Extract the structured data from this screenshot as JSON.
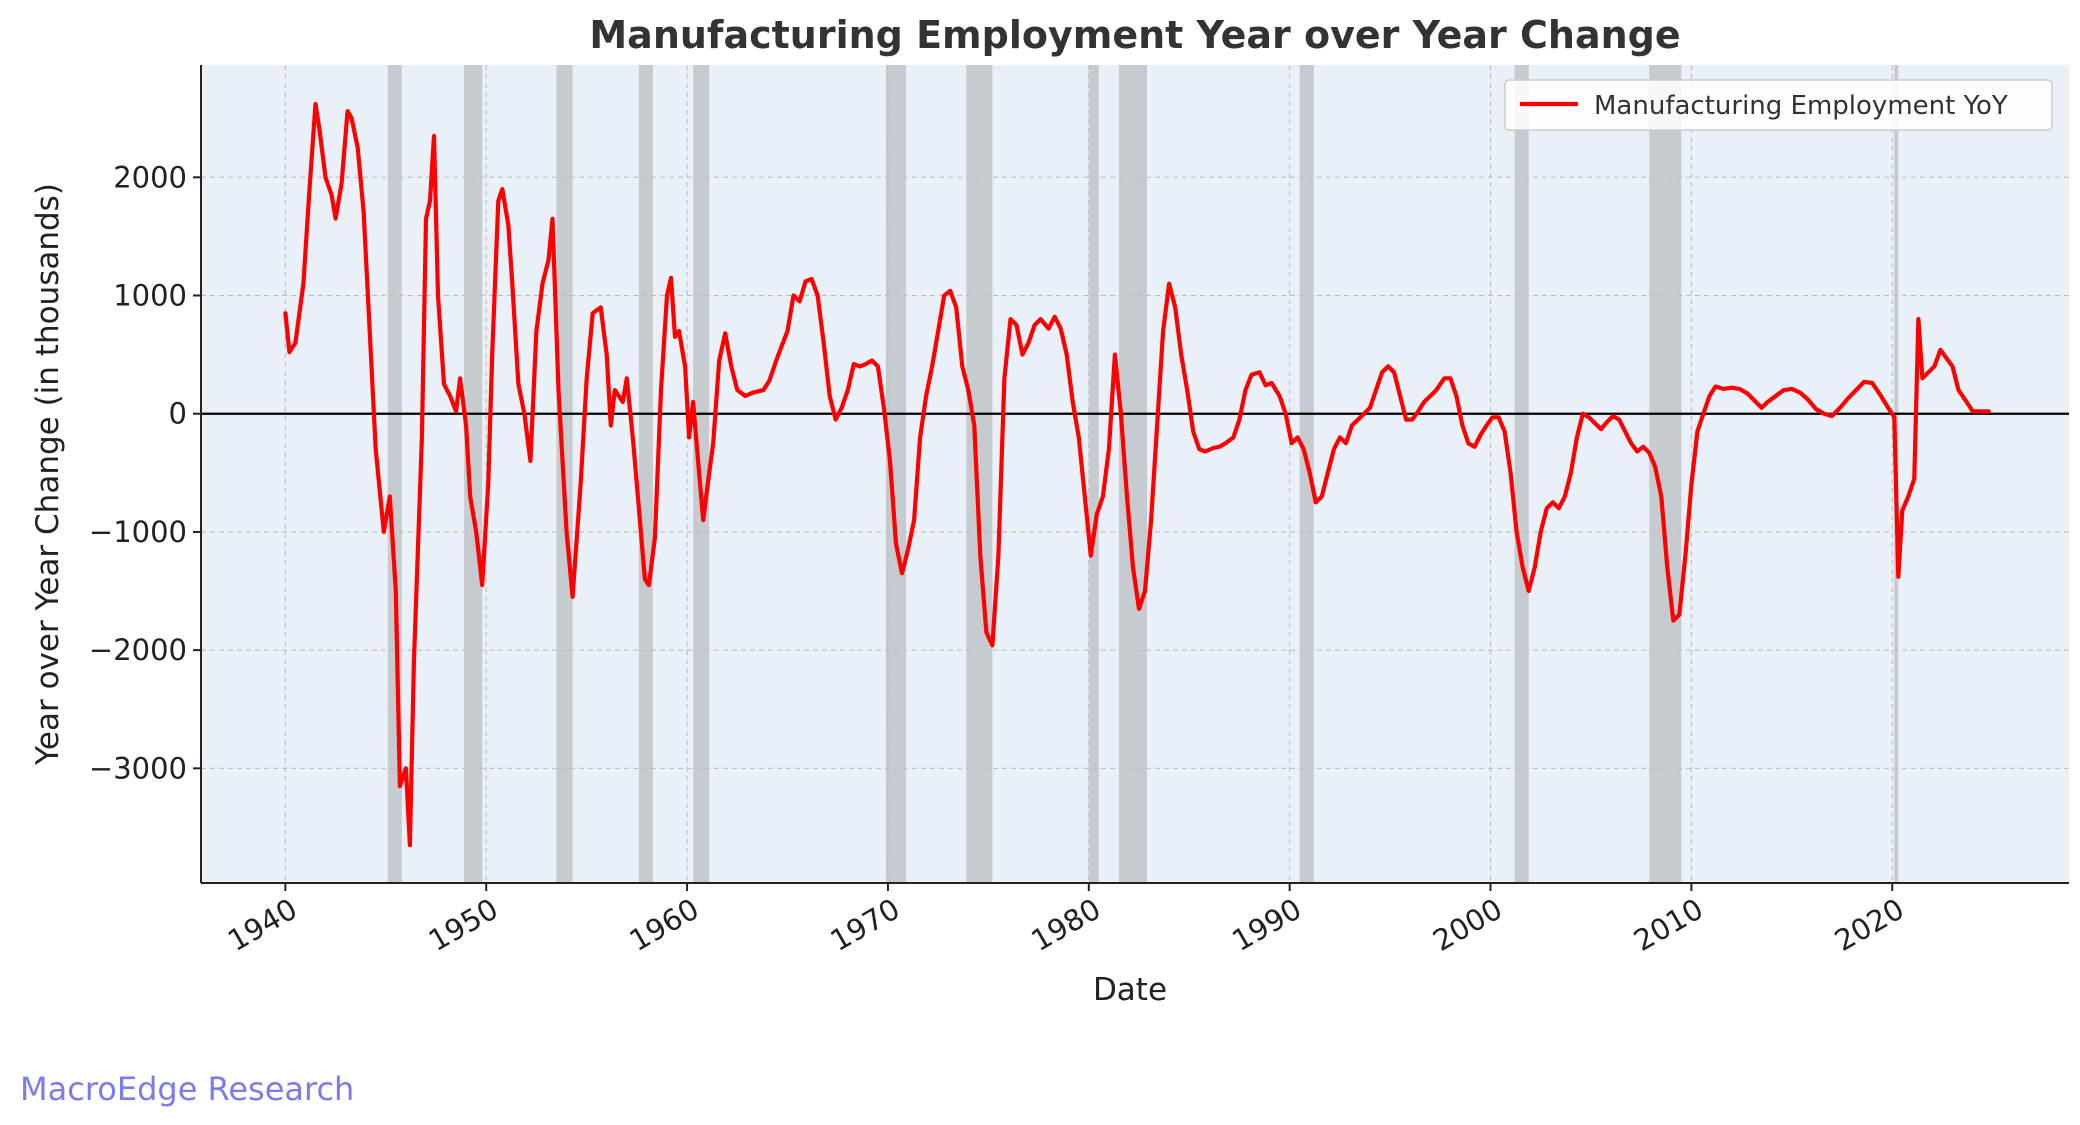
{
  "chart_data": {
    "type": "line",
    "title": "Manufacturing Employment Year over Year Change",
    "xlabel": "Date",
    "ylabel": "Year over Year Change (in thousands)",
    "xlim": [
      1935.8,
      2028.8
    ],
    "ylim": [
      -3970,
      2950
    ],
    "xticks": [
      1940,
      1950,
      1960,
      1970,
      1980,
      1990,
      2000,
      2010,
      2020
    ],
    "yticks": [
      -3000,
      -2000,
      -1000,
      0,
      1000,
      2000
    ],
    "ytick_labels": [
      "−3000",
      "−2000",
      "−1000",
      "0",
      "1000",
      "2000"
    ],
    "grid": true,
    "zero_line": true,
    "legend_position": "top-right",
    "colors": {
      "line": "#ff0000",
      "plot_background": "#eaf0f7",
      "recession_band": "#b9bcc0",
      "grid": "#bbbbbb",
      "zero_line": "#000000"
    },
    "recessions": [
      [
        1945.1,
        1945.8
      ],
      [
        1948.9,
        1949.8
      ],
      [
        1953.5,
        1954.3
      ],
      [
        1957.6,
        1958.3
      ],
      [
        1960.3,
        1961.1
      ],
      [
        1969.9,
        1970.9
      ],
      [
        1973.9,
        1975.2
      ],
      [
        1980.0,
        1980.5
      ],
      [
        1981.5,
        1982.9
      ],
      [
        1990.5,
        1991.2
      ],
      [
        2001.2,
        2001.9
      ],
      [
        2007.9,
        2009.5
      ],
      [
        2020.1,
        2020.3
      ]
    ],
    "series": [
      {
        "name": "Manufacturing Employment YoY",
        "color": "#ff0000",
        "points": [
          [
            1940.0,
            850
          ],
          [
            1940.2,
            520
          ],
          [
            1940.5,
            600
          ],
          [
            1940.9,
            1100
          ],
          [
            1941.2,
            1900
          ],
          [
            1941.5,
            2620
          ],
          [
            1941.7,
            2400
          ],
          [
            1942.0,
            2000
          ],
          [
            1942.3,
            1850
          ],
          [
            1942.5,
            1650
          ],
          [
            1942.8,
            1950
          ],
          [
            1943.1,
            2560
          ],
          [
            1943.3,
            2500
          ],
          [
            1943.6,
            2250
          ],
          [
            1943.9,
            1700
          ],
          [
            1944.2,
            700
          ],
          [
            1944.5,
            -300
          ],
          [
            1944.9,
            -1000
          ],
          [
            1945.2,
            -700
          ],
          [
            1945.5,
            -1500
          ],
          [
            1945.7,
            -3150
          ],
          [
            1945.9,
            -3050
          ],
          [
            1946.0,
            -3000
          ],
          [
            1946.2,
            -3650
          ],
          [
            1946.4,
            -2100
          ],
          [
            1946.8,
            -200
          ],
          [
            1947.0,
            1650
          ],
          [
            1947.2,
            1800
          ],
          [
            1947.4,
            2350
          ],
          [
            1947.6,
            1000
          ],
          [
            1947.9,
            250
          ],
          [
            1948.2,
            150
          ],
          [
            1948.5,
            20
          ],
          [
            1948.7,
            300
          ],
          [
            1949.0,
            -100
          ],
          [
            1949.2,
            -700
          ],
          [
            1949.5,
            -1000
          ],
          [
            1949.8,
            -1450
          ],
          [
            1950.1,
            -600
          ],
          [
            1950.3,
            500
          ],
          [
            1950.6,
            1800
          ],
          [
            1950.8,
            1900
          ],
          [
            1951.1,
            1600
          ],
          [
            1951.3,
            1100
          ],
          [
            1951.6,
            250
          ],
          [
            1951.9,
            0
          ],
          [
            1952.2,
            -400
          ],
          [
            1952.5,
            700
          ],
          [
            1952.8,
            1100
          ],
          [
            1953.1,
            1300
          ],
          [
            1953.3,
            1650
          ],
          [
            1953.6,
            200
          ],
          [
            1954.0,
            -1000
          ],
          [
            1954.3,
            -1550
          ],
          [
            1954.7,
            -600
          ],
          [
            1955.0,
            300
          ],
          [
            1955.3,
            850
          ],
          [
            1955.7,
            900
          ],
          [
            1956.0,
            500
          ],
          [
            1956.2,
            -100
          ],
          [
            1956.4,
            200
          ],
          [
            1956.8,
            100
          ],
          [
            1957.0,
            300
          ],
          [
            1957.3,
            -200
          ],
          [
            1957.6,
            -800
          ],
          [
            1957.9,
            -1400
          ],
          [
            1958.1,
            -1450
          ],
          [
            1958.4,
            -1050
          ],
          [
            1958.7,
            200
          ],
          [
            1959.0,
            1000
          ],
          [
            1959.2,
            1150
          ],
          [
            1959.4,
            650
          ],
          [
            1959.6,
            700
          ],
          [
            1959.9,
            400
          ],
          [
            1960.1,
            -200
          ],
          [
            1960.3,
            100
          ],
          [
            1960.6,
            -500
          ],
          [
            1960.8,
            -900
          ],
          [
            1961.1,
            -500
          ],
          [
            1961.3,
            -250
          ],
          [
            1961.6,
            450
          ],
          [
            1961.9,
            680
          ],
          [
            1962.2,
            400
          ],
          [
            1962.5,
            200
          ],
          [
            1962.9,
            150
          ],
          [
            1963.3,
            180
          ],
          [
            1963.8,
            200
          ],
          [
            1964.1,
            280
          ],
          [
            1964.5,
            480
          ],
          [
            1965.0,
            700
          ],
          [
            1965.3,
            1000
          ],
          [
            1965.6,
            950
          ],
          [
            1965.9,
            1120
          ],
          [
            1966.2,
            1140
          ],
          [
            1966.5,
            1000
          ],
          [
            1966.8,
            600
          ],
          [
            1967.1,
            150
          ],
          [
            1967.4,
            -50
          ],
          [
            1967.7,
            50
          ],
          [
            1968.0,
            200
          ],
          [
            1968.3,
            420
          ],
          [
            1968.6,
            400
          ],
          [
            1968.9,
            420
          ],
          [
            1969.2,
            450
          ],
          [
            1969.5,
            400
          ],
          [
            1969.8,
            50
          ],
          [
            1970.1,
            -400
          ],
          [
            1970.4,
            -1100
          ],
          [
            1970.7,
            -1350
          ],
          [
            1971.0,
            -1150
          ],
          [
            1971.3,
            -900
          ],
          [
            1971.6,
            -200
          ],
          [
            1971.9,
            150
          ],
          [
            1972.2,
            400
          ],
          [
            1972.5,
            700
          ],
          [
            1972.8,
            1000
          ],
          [
            1973.1,
            1040
          ],
          [
            1973.4,
            900
          ],
          [
            1973.7,
            400
          ],
          [
            1974.0,
            200
          ],
          [
            1974.3,
            -100
          ],
          [
            1974.6,
            -1200
          ],
          [
            1974.9,
            -1850
          ],
          [
            1975.2,
            -1960
          ],
          [
            1975.5,
            -1200
          ],
          [
            1975.8,
            300
          ],
          [
            1976.1,
            800
          ],
          [
            1976.4,
            750
          ],
          [
            1976.7,
            500
          ],
          [
            1977.0,
            600
          ],
          [
            1977.3,
            750
          ],
          [
            1977.6,
            800
          ],
          [
            1978.0,
            720
          ],
          [
            1978.3,
            820
          ],
          [
            1978.6,
            720
          ],
          [
            1978.9,
            500
          ],
          [
            1979.2,
            100
          ],
          [
            1979.5,
            -200
          ],
          [
            1979.8,
            -700
          ],
          [
            1980.1,
            -1200
          ],
          [
            1980.4,
            -850
          ],
          [
            1980.7,
            -700
          ],
          [
            1981.0,
            -300
          ],
          [
            1981.3,
            500
          ],
          [
            1981.6,
            0
          ],
          [
            1981.9,
            -700
          ],
          [
            1982.2,
            -1300
          ],
          [
            1982.5,
            -1650
          ],
          [
            1982.8,
            -1500
          ],
          [
            1983.1,
            -900
          ],
          [
            1983.4,
            -100
          ],
          [
            1983.7,
            700
          ],
          [
            1984.0,
            1100
          ],
          [
            1984.3,
            900
          ],
          [
            1984.6,
            500
          ],
          [
            1984.9,
            200
          ],
          [
            1985.2,
            -150
          ],
          [
            1985.5,
            -300
          ],
          [
            1985.8,
            -320
          ],
          [
            1986.2,
            -290
          ],
          [
            1986.5,
            -280
          ],
          [
            1986.8,
            -250
          ],
          [
            1987.2,
            -200
          ],
          [
            1987.5,
            -50
          ],
          [
            1987.8,
            200
          ],
          [
            1988.1,
            330
          ],
          [
            1988.5,
            350
          ],
          [
            1988.8,
            240
          ],
          [
            1989.1,
            260
          ],
          [
            1989.5,
            150
          ],
          [
            1989.8,
            0
          ],
          [
            1990.1,
            -250
          ],
          [
            1990.4,
            -200
          ],
          [
            1990.7,
            -300
          ],
          [
            1991.0,
            -500
          ],
          [
            1991.3,
            -750
          ],
          [
            1991.6,
            -700
          ],
          [
            1991.9,
            -500
          ],
          [
            1992.2,
            -300
          ],
          [
            1992.5,
            -200
          ],
          [
            1992.8,
            -250
          ],
          [
            1993.1,
            -100
          ],
          [
            1993.4,
            -50
          ],
          [
            1993.7,
            0
          ],
          [
            1994.0,
            50
          ],
          [
            1994.3,
            200
          ],
          [
            1994.6,
            350
          ],
          [
            1994.9,
            400
          ],
          [
            1995.2,
            350
          ],
          [
            1995.5,
            150
          ],
          [
            1995.8,
            -50
          ],
          [
            1996.1,
            -50
          ],
          [
            1996.4,
            20
          ],
          [
            1996.7,
            100
          ],
          [
            1997.0,
            150
          ],
          [
            1997.3,
            200
          ],
          [
            1997.7,
            300
          ],
          [
            1998.0,
            300
          ],
          [
            1998.3,
            150
          ],
          [
            1998.6,
            -100
          ],
          [
            1998.9,
            -250
          ],
          [
            1999.2,
            -280
          ],
          [
            1999.5,
            -180
          ],
          [
            1999.8,
            -100
          ],
          [
            2000.1,
            -30
          ],
          [
            2000.4,
            -30
          ],
          [
            2000.7,
            -150
          ],
          [
            2001.0,
            -500
          ],
          [
            2001.3,
            -1000
          ],
          [
            2001.6,
            -1300
          ],
          [
            2001.9,
            -1500
          ],
          [
            2002.2,
            -1300
          ],
          [
            2002.5,
            -1000
          ],
          [
            2002.8,
            -800
          ],
          [
            2003.1,
            -750
          ],
          [
            2003.4,
            -800
          ],
          [
            2003.7,
            -700
          ],
          [
            2004.0,
            -500
          ],
          [
            2004.3,
            -200
          ],
          [
            2004.6,
            0
          ],
          [
            2004.9,
            -30
          ],
          [
            2005.2,
            -80
          ],
          [
            2005.5,
            -130
          ],
          [
            2005.8,
            -70
          ],
          [
            2006.1,
            -20
          ],
          [
            2006.4,
            -50
          ],
          [
            2006.7,
            -150
          ],
          [
            2007.0,
            -250
          ],
          [
            2007.3,
            -320
          ],
          [
            2007.6,
            -280
          ],
          [
            2007.9,
            -330
          ],
          [
            2008.2,
            -450
          ],
          [
            2008.5,
            -700
          ],
          [
            2008.8,
            -1300
          ],
          [
            2009.1,
            -1750
          ],
          [
            2009.4,
            -1700
          ],
          [
            2009.7,
            -1200
          ],
          [
            2010.0,
            -600
          ],
          [
            2010.3,
            -150
          ],
          [
            2010.6,
            0
          ],
          [
            2010.9,
            150
          ],
          [
            2011.2,
            230
          ],
          [
            2011.6,
            210
          ],
          [
            2012.0,
            220
          ],
          [
            2012.4,
            210
          ],
          [
            2012.8,
            170
          ],
          [
            2013.2,
            100
          ],
          [
            2013.5,
            50
          ],
          [
            2013.8,
            100
          ],
          [
            2014.2,
            150
          ],
          [
            2014.6,
            200
          ],
          [
            2015.0,
            210
          ],
          [
            2015.4,
            180
          ],
          [
            2015.8,
            120
          ],
          [
            2016.2,
            40
          ],
          [
            2016.6,
            0
          ],
          [
            2017.0,
            -20
          ],
          [
            2017.4,
            50
          ],
          [
            2017.8,
            130
          ],
          [
            2018.2,
            200
          ],
          [
            2018.6,
            270
          ],
          [
            2019.0,
            260
          ],
          [
            2019.4,
            160
          ],
          [
            2019.8,
            50
          ],
          [
            2020.1,
            -30
          ],
          [
            2020.3,
            -1380
          ],
          [
            2020.5,
            -820
          ],
          [
            2020.8,
            -700
          ],
          [
            2021.1,
            -550
          ],
          [
            2021.3,
            800
          ],
          [
            2021.5,
            300
          ],
          [
            2021.8,
            350
          ],
          [
            2022.1,
            400
          ],
          [
            2022.4,
            540
          ],
          [
            2022.7,
            470
          ],
          [
            2023.0,
            400
          ],
          [
            2023.3,
            200
          ],
          [
            2023.7,
            100
          ],
          [
            2024.0,
            20
          ],
          [
            2024.4,
            20
          ],
          [
            2024.8,
            20
          ]
        ]
      }
    ]
  },
  "watermark": "MacroEdge Research"
}
